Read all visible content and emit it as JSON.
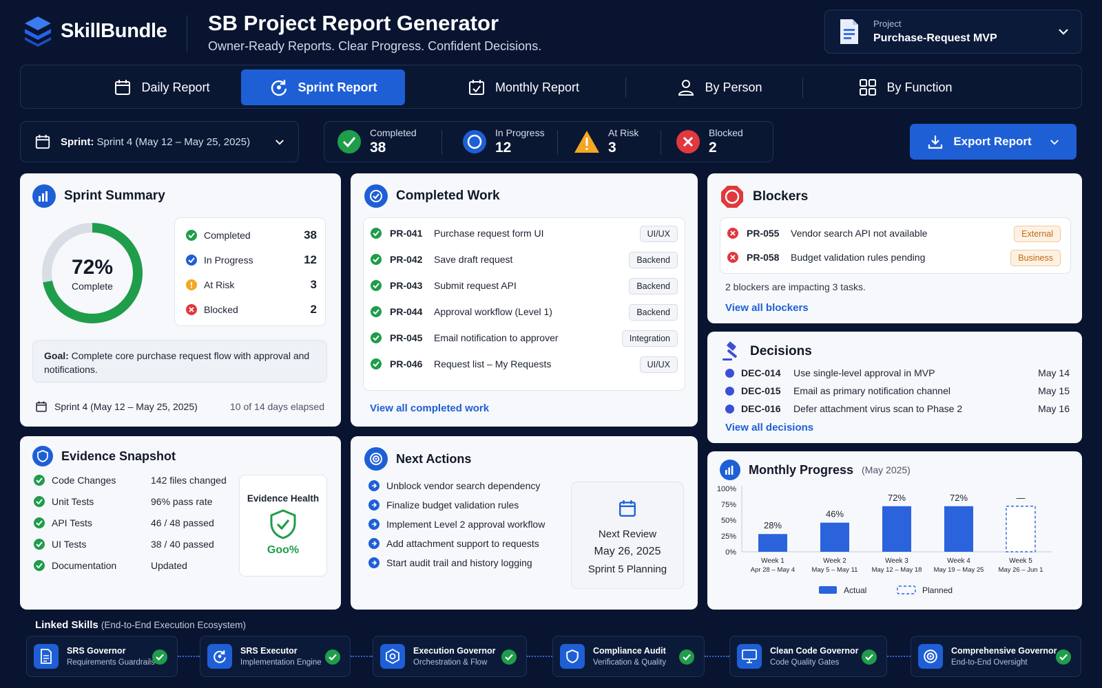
{
  "brand": {
    "name": "SkillBundle"
  },
  "app": {
    "title": "SB Project Report Generator",
    "subtitle": "Owner-Ready Reports. Clear Progress. Confident Decisions."
  },
  "project": {
    "label": "Project",
    "value": "Purchase-Request MVP"
  },
  "tabs": [
    {
      "label": "Daily Report",
      "icon": "calendar-icon"
    },
    {
      "label": "Sprint Report",
      "icon": "refresh-icon",
      "active": true
    },
    {
      "label": "Monthly Report",
      "icon": "calendar-check-icon"
    },
    {
      "label": "By Person",
      "icon": "user-icon"
    },
    {
      "label": "By Function",
      "icon": "grid-icon"
    }
  ],
  "sprint_select": {
    "label": "Sprint:",
    "value": "Sprint 4 (May 12 – May 25, 2025)"
  },
  "stats": {
    "completed": {
      "label": "Completed",
      "value": "38"
    },
    "in_progress": {
      "label": "In Progress",
      "value": "12"
    },
    "at_risk": {
      "label": "At Risk",
      "value": "3"
    },
    "blocked": {
      "label": "Blocked",
      "value": "2"
    }
  },
  "export": {
    "label": "Export Report"
  },
  "colors": {
    "accent": "#1e5fd6",
    "success": "#1f9d4a",
    "warning": "#f5a623",
    "danger": "#e0393e",
    "background": "#081430"
  },
  "sprint_summary": {
    "title": "Sprint Summary",
    "percent": "72%",
    "percent_value": 72,
    "percent_label": "Complete",
    "items": [
      {
        "label": "Completed",
        "value": "38"
      },
      {
        "label": "In Progress",
        "value": "12"
      },
      {
        "label": "At Risk",
        "value": "3"
      },
      {
        "label": "Blocked",
        "value": "2"
      }
    ],
    "goal_label": "Goal:",
    "goal_text": "Complete core purchase request flow with approval and notifications.",
    "footer_sprint": "Sprint 4 (May 12 – May 25, 2025)",
    "footer_days": "10 of 14 days elapsed"
  },
  "completed_work": {
    "title": "Completed Work",
    "items": [
      {
        "id": "PR-041",
        "text": "Purchase request form UI",
        "tag": "UI/UX"
      },
      {
        "id": "PR-042",
        "text": "Save draft request",
        "tag": "Backend"
      },
      {
        "id": "PR-043",
        "text": "Submit request API",
        "tag": "Backend"
      },
      {
        "id": "PR-044",
        "text": "Approval workflow (Level 1)",
        "tag": "Backend"
      },
      {
        "id": "PR-045",
        "text": "Email notification to approver",
        "tag": "Integration"
      },
      {
        "id": "PR-046",
        "text": "Request list – My Requests",
        "tag": "UI/UX"
      }
    ],
    "link": "View all completed work"
  },
  "blockers": {
    "title": "Blockers",
    "items": [
      {
        "id": "PR-055",
        "text": "Vendor search API not available",
        "tag": "External"
      },
      {
        "id": "PR-058",
        "text": "Budget validation rules pending",
        "tag": "Business"
      }
    ],
    "summary": "2 blockers are impacting 3 tasks.",
    "link": "View all blockers"
  },
  "decisions": {
    "title": "Decisions",
    "items": [
      {
        "id": "DEC-014",
        "text": "Use single-level approval in MVP",
        "date": "May 14"
      },
      {
        "id": "DEC-015",
        "text": "Email as primary notification channel",
        "date": "May 15"
      },
      {
        "id": "DEC-016",
        "text": "Defer attachment virus scan to Phase 2",
        "date": "May 16"
      }
    ],
    "link": "View all decisions"
  },
  "evidence": {
    "title": "Evidence Snapshot",
    "items": [
      {
        "label": "Code Changes",
        "value": "142 files changed"
      },
      {
        "label": "Unit Tests",
        "value": "96% pass rate"
      },
      {
        "label": "API Tests",
        "value": "46 / 48 passed"
      },
      {
        "label": "UI Tests",
        "value": "38 / 40 passed"
      },
      {
        "label": "Documentation",
        "value": "Updated"
      }
    ],
    "health_label": "Evidence Health",
    "health_value": "Goo%"
  },
  "next_actions": {
    "title": "Next Actions",
    "items": [
      "Unblock vendor search dependency",
      "Finalize budget validation rules",
      "Implement Level 2 approval workflow",
      "Add attachment support to requests",
      "Start audit trail and history logging"
    ],
    "review_label": "Next Review",
    "review_date": "May 26, 2025",
    "review_event": "Sprint 5 Planning"
  },
  "chart_data": {
    "type": "bar",
    "title": "Monthly Progress",
    "subtitle": "(May 2025)",
    "categories": [
      "Week 1",
      "Week 2",
      "Week 3",
      "Week 4",
      "Week 5"
    ],
    "category_ranges": [
      "Apr 28 – May 4",
      "May 5 – May 11",
      "May 12 – May 18",
      "May 19 – May 25",
      "May 26 – Jun 1"
    ],
    "series": [
      {
        "name": "Actual",
        "values": [
          28,
          46,
          72,
          72,
          null
        ]
      },
      {
        "name": "Planned",
        "values": [
          null,
          null,
          null,
          null,
          72
        ]
      }
    ],
    "data_labels": [
      "28%",
      "46%",
      "72%",
      "72%",
      "—"
    ],
    "y_ticks": [
      "0%",
      "25%",
      "50%",
      "75%",
      "100%"
    ],
    "ylim": [
      0,
      100
    ],
    "legend_position": "bottom"
  },
  "linked_skills": {
    "title": "Linked Skills",
    "subtitle": "(End-to-End Execution Ecosystem)",
    "items": [
      {
        "name": "SRS Governor",
        "desc": "Requirements Guardrails",
        "icon": "document-icon"
      },
      {
        "name": "SRS Executor",
        "desc": "Implementation Engine",
        "icon": "refresh-icon"
      },
      {
        "name": "Execution Governor",
        "desc": "Orchestration & Flow",
        "icon": "hexagon-icon"
      },
      {
        "name": "Compliance Audit",
        "desc": "Verification & Quality",
        "icon": "shield-icon"
      },
      {
        "name": "Clean Code Governor",
        "desc": "Code Quality Gates",
        "icon": "monitor-icon"
      },
      {
        "name": "Comprehensive Governor",
        "desc": "End-to-End Oversight",
        "icon": "target-icon"
      }
    ]
  }
}
